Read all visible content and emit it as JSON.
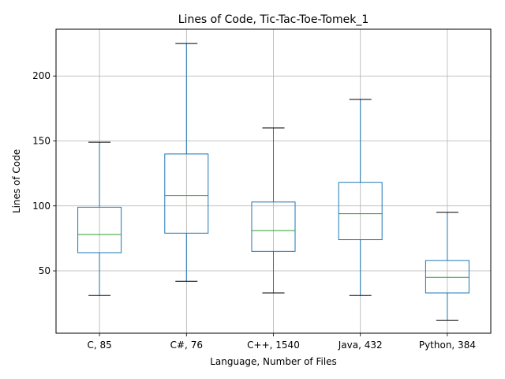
{
  "chart_data": {
    "type": "box",
    "title": "Lines of Code, Tic-Tac-Toe-Tomek_1",
    "xlabel": "Language, Number of Files",
    "ylabel": "Lines of Code",
    "ylim": [
      2,
      236
    ],
    "yticks": [
      50,
      100,
      150,
      200
    ],
    "grid": true,
    "categories": [
      "C, 85",
      "C#, 76",
      "C++, 1540",
      "Java, 432",
      "Python, 384"
    ],
    "boxes": [
      {
        "category": "C, 85",
        "whisker_low": 31,
        "q1": 64,
        "median": 78,
        "q3": 99,
        "whisker_high": 149
      },
      {
        "category": "C#, 76",
        "whisker_low": 42,
        "q1": 79,
        "median": 108,
        "q3": 140,
        "whisker_high": 225
      },
      {
        "category": "C++, 1540",
        "whisker_low": 33,
        "q1": 65,
        "median": 81,
        "q3": 103,
        "whisker_high": 160
      },
      {
        "category": "Java, 432",
        "whisker_low": 31,
        "q1": 74,
        "median": 94,
        "q3": 118,
        "whisker_high": 182
      },
      {
        "category": "Python, 384",
        "whisker_low": 12,
        "q1": 33,
        "median": 45,
        "q3": 58,
        "whisker_high": 95
      }
    ],
    "colors": {
      "box": "#1f77b4",
      "median": "#2ca02c",
      "whisker_cap": "#000000",
      "grid": "#b0b0b0"
    }
  }
}
